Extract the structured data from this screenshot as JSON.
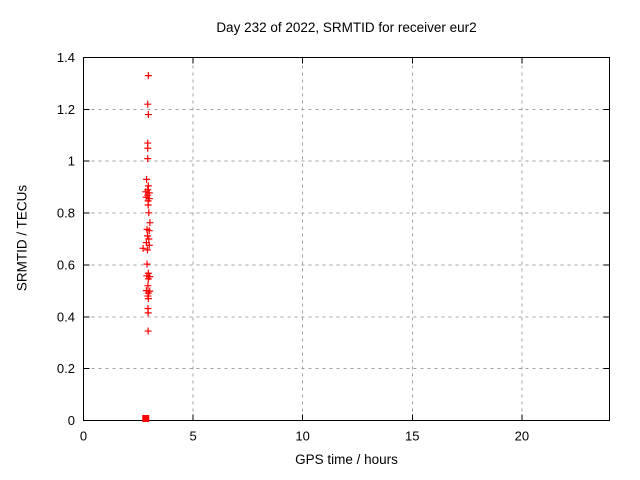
{
  "window": {
    "background": "#ffffff"
  },
  "chart_data": {
    "type": "scatter",
    "title": "Day 232 of 2022, SRMTID for receiver eur2",
    "xlabel": "GPS time / hours",
    "ylabel": "SRMTID / TECUs",
    "xlim": [
      0,
      24
    ],
    "ylim": [
      0,
      1.4
    ],
    "xticks": [
      0,
      5,
      10,
      15,
      20
    ],
    "xtick_labels": [
      "0",
      "5",
      "10",
      "15",
      "20"
    ],
    "yticks": [
      0,
      0.2,
      0.4,
      0.6,
      0.8,
      1,
      1.2,
      1.4
    ],
    "ytick_labels": [
      "0",
      "0.2",
      "0.4",
      "0.6",
      "0.8",
      "1",
      "1.2",
      "1.4"
    ],
    "grid": true,
    "legend": "none",
    "colors": {
      "marker": "#ff0000",
      "grid": "#a0a0a0",
      "frame": "#000000",
      "background": "#ffffff",
      "text": "#000000"
    },
    "series": [
      {
        "name": "srmtid-values",
        "marker": "plus",
        "color": "#ff0000",
        "points": [
          [
            2.96,
            1.33
          ],
          [
            2.93,
            1.22
          ],
          [
            2.96,
            1.18
          ],
          [
            2.93,
            1.07
          ],
          [
            2.93,
            1.05
          ],
          [
            2.93,
            1.01
          ],
          [
            2.88,
            0.93
          ],
          [
            2.96,
            0.905
          ],
          [
            2.93,
            0.89
          ],
          [
            2.84,
            0.882
          ],
          [
            3.0,
            0.878
          ],
          [
            2.93,
            0.869
          ],
          [
            2.86,
            0.861
          ],
          [
            3.0,
            0.856
          ],
          [
            2.95,
            0.847
          ],
          [
            2.95,
            0.831
          ],
          [
            2.98,
            0.801
          ],
          [
            3.03,
            0.763
          ],
          [
            2.9,
            0.737
          ],
          [
            3.0,
            0.732
          ],
          [
            2.92,
            0.712
          ],
          [
            2.98,
            0.7
          ],
          [
            2.87,
            0.686
          ],
          [
            3.0,
            0.676
          ],
          [
            2.72,
            0.664
          ],
          [
            2.92,
            0.658
          ],
          [
            2.9,
            0.603
          ],
          [
            2.96,
            0.568
          ],
          [
            2.89,
            0.558
          ],
          [
            3.02,
            0.555
          ],
          [
            2.96,
            0.546
          ],
          [
            2.94,
            0.52
          ],
          [
            2.87,
            0.501
          ],
          [
            3.02,
            0.499
          ],
          [
            2.96,
            0.492
          ],
          [
            2.94,
            0.48
          ],
          [
            2.96,
            0.47
          ],
          [
            2.94,
            0.432
          ],
          [
            2.95,
            0.415
          ],
          [
            2.95,
            0.345
          ]
        ]
      },
      {
        "name": "zero-baseline-marker",
        "marker": "filled-square",
        "color": "#ff0000",
        "points": [
          [
            2.84,
            0.0
          ]
        ]
      }
    ]
  }
}
